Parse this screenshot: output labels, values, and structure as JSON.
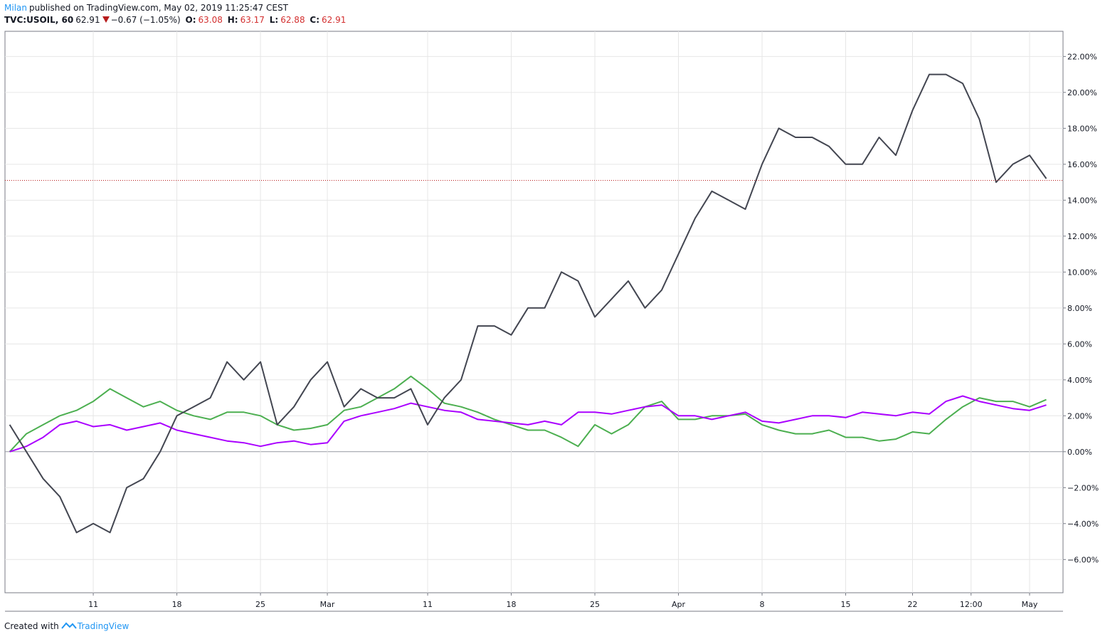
{
  "header": {
    "author": "Milan",
    "published": "published on TradingView.com, May 02, 2019 11:25:47 CEST",
    "symbol": "TVC:USOIL, 60",
    "last": "62.91",
    "change": "−0.67 (−1.05%)",
    "o_label": "O:",
    "open": "63.08",
    "h_label": "H:",
    "high": "63.17",
    "l_label": "L:",
    "low": "62.88",
    "c_label": "C:",
    "close": "62.91"
  },
  "chart_data": {
    "type": "line",
    "xlim": [
      -0.28,
      63.0
    ],
    "xticks": [
      {
        "value": 5,
        "label": "11"
      },
      {
        "value": 10,
        "label": "18"
      },
      {
        "value": 15,
        "label": "25"
      },
      {
        "value": 19,
        "label": "Mar"
      },
      {
        "value": 25,
        "label": "11"
      },
      {
        "value": 30,
        "label": "18"
      },
      {
        "value": 35,
        "label": "25"
      },
      {
        "value": 40,
        "label": "Apr"
      },
      {
        "value": 45,
        "label": "8"
      },
      {
        "value": 50,
        "label": "15"
      },
      {
        "value": 54,
        "label": "22"
      },
      {
        "value": 57.5,
        "label": "12:00"
      },
      {
        "value": 61,
        "label": "May"
      }
    ],
    "ylim": [
      -7.85,
      23.4
    ],
    "yticks": [
      {
        "value": -6,
        "label": "−6.00%"
      },
      {
        "value": -4,
        "label": "−4.00%"
      },
      {
        "value": -2,
        "label": "−2.00%"
      },
      {
        "value": 0,
        "label": "0.00%"
      },
      {
        "value": 2,
        "label": "2.00%"
      },
      {
        "value": 4,
        "label": "4.00%"
      },
      {
        "value": 6,
        "label": "6.00%"
      },
      {
        "value": 8,
        "label": "8.00%"
      },
      {
        "value": 10,
        "label": "10.00%"
      },
      {
        "value": 12,
        "label": "12.00%"
      },
      {
        "value": 14,
        "label": "14.00%"
      },
      {
        "value": 16,
        "label": "16.00%"
      },
      {
        "value": 18,
        "label": "18.00%"
      },
      {
        "value": 20,
        "label": "20.00%"
      },
      {
        "value": 22,
        "label": "22.00%"
      }
    ],
    "grid": true,
    "price_line": {
      "value": 15.1,
      "color": "#b71c1c"
    },
    "series": [
      {
        "color": "#4caf50",
        "values": [
          0,
          1,
          1.5,
          2,
          2.3,
          2.8,
          3.5,
          3,
          2.5,
          2.8,
          2.3,
          2,
          1.8,
          2.2,
          2.2,
          2,
          1.5,
          1.2,
          1.3,
          1.5,
          2.3,
          2.5,
          3,
          3.5,
          4.2,
          3.5,
          2.7,
          2.5,
          2.2,
          1.8,
          1.5,
          1.2,
          1.2,
          0.8,
          0.3,
          1.5,
          1,
          1.5,
          2.5,
          2.8,
          1.8,
          1.8,
          2,
          2,
          2.1,
          1.5,
          1.2,
          1,
          1,
          1.2,
          0.8,
          0.8,
          0.6,
          0.7,
          1.1,
          1,
          1.8,
          2.5,
          3,
          2.8,
          2.8,
          2.5,
          2.9
        ]
      },
      {
        "color": "#aa00ff",
        "values": [
          0,
          0.3,
          0.8,
          1.5,
          1.7,
          1.4,
          1.5,
          1.2,
          1.4,
          1.6,
          1.2,
          1,
          0.8,
          0.6,
          0.5,
          0.3,
          0.5,
          0.6,
          0.4,
          0.5,
          1.7,
          2,
          2.2,
          2.4,
          2.7,
          2.5,
          2.3,
          2.2,
          1.8,
          1.7,
          1.6,
          1.5,
          1.7,
          1.5,
          2.2,
          2.2,
          2.1,
          2.3,
          2.5,
          2.6,
          2,
          2,
          1.8,
          2,
          2.2,
          1.7,
          1.6,
          1.8,
          2,
          2,
          1.9,
          2.2,
          2.1,
          2,
          2.2,
          2.1,
          2.8,
          3.1,
          2.8,
          2.6,
          2.4,
          2.3,
          2.6
        ]
      },
      {
        "color": "#434651",
        "values": [
          1.5,
          0,
          -1.5,
          -2.5,
          -4.5,
          -4,
          -4.5,
          -2,
          -1.5,
          0,
          2,
          2.5,
          3,
          5,
          4,
          5,
          1.5,
          2.5,
          4,
          5,
          2.5,
          3.5,
          3,
          3,
          3.5,
          1.5,
          3,
          4,
          7,
          7,
          6.5,
          8,
          8,
          10,
          9.5,
          7.5,
          8.5,
          9.5,
          8,
          9,
          11,
          13,
          14.5,
          14,
          13.5,
          16,
          18,
          17.5,
          17.5,
          17,
          16,
          16,
          17.5,
          16.5,
          19,
          21,
          21,
          20.5,
          18.5,
          15,
          16,
          16.5,
          15.2
        ]
      }
    ]
  },
  "footer": {
    "created": "Created with",
    "brand": "TradingView"
  }
}
